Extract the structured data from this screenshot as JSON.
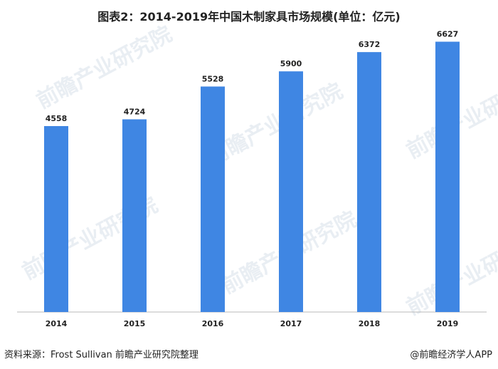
{
  "title": "图表2：2014-2019年中国木制家具市场规模(单位：亿元)",
  "footer": {
    "source": "资料来源：Frost Sullivan 前瞻产业研究院整理",
    "brand": "@前瞻经济学人APP"
  },
  "watermark": {
    "text": "前瞻产业研究院"
  },
  "colors": {
    "bar": "#3f86e3",
    "axis": "#b8b8b8"
  },
  "chart_data": {
    "type": "bar",
    "title": "图表2：2014-2019年中国木制家具市场规模(单位：亿元)",
    "categories": [
      "2014",
      "2015",
      "2016",
      "2017",
      "2018",
      "2019"
    ],
    "values": [
      4558,
      4724,
      5528,
      5900,
      6372,
      6627
    ],
    "ylim": [
      0,
      7000
    ],
    "grid": false,
    "legend": "none"
  }
}
